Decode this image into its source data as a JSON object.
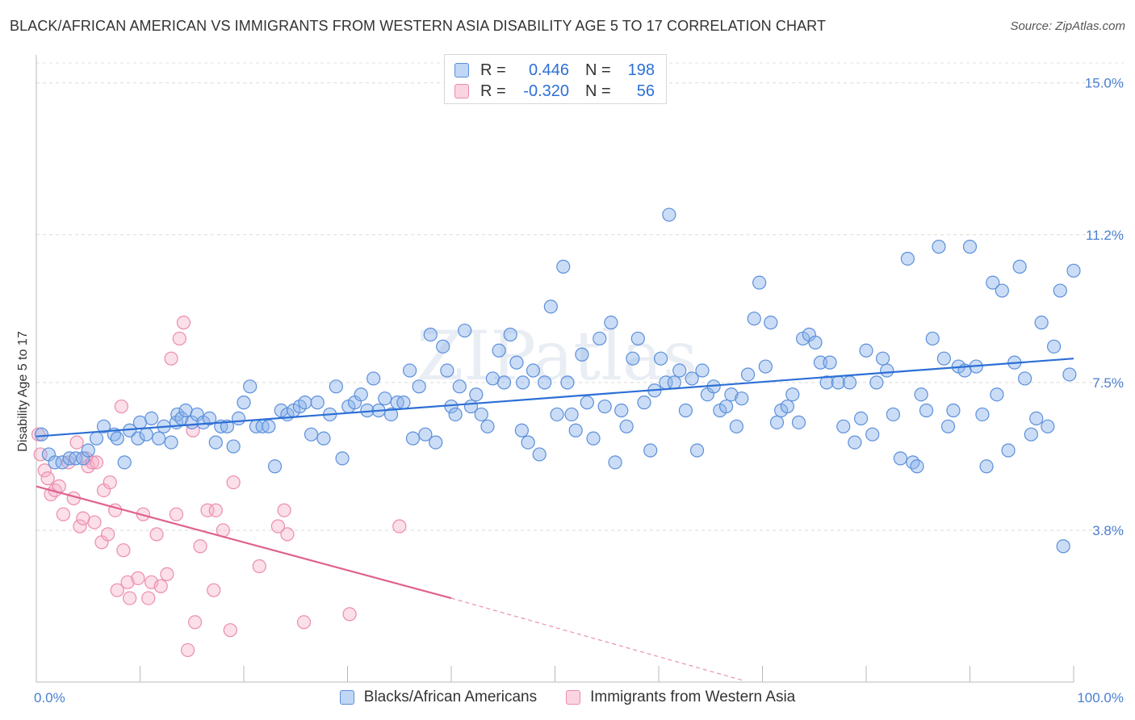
{
  "title": "BLACK/AFRICAN AMERICAN VS IMMIGRANTS FROM WESTERN ASIA DISABILITY AGE 5 TO 17 CORRELATION CHART",
  "source": "Source: ZipAtlas.com",
  "watermark": "ZIPatlas",
  "legend": {
    "blue": {
      "r_label": "R =",
      "r_value": "0.446",
      "n_label": "N =",
      "n_value": "198"
    },
    "pink": {
      "r_label": "R =",
      "r_value": "-0.320",
      "n_label": "N =",
      "n_value": "56"
    }
  },
  "colors": {
    "blue": "#5b8fdb",
    "blue_line": "#2d6fd6",
    "pink": "#ec8cad",
    "pink_line": "#e0608f",
    "tick_text": "#4a7fd0"
  },
  "chart_data": {
    "type": "scatter",
    "title": "BLACK/AFRICAN AMERICAN VS IMMIGRANTS FROM WESTERN ASIA DISABILITY AGE 5 TO 17 CORRELATION CHART",
    "xlabel": "",
    "ylabel": "Disability Age 5 to 17",
    "xlim": [
      0,
      100
    ],
    "ylim": [
      0,
      15.5
    ],
    "x_tick_labels": [
      "0.0%",
      "100.0%"
    ],
    "y_ticks": [
      3.8,
      7.5,
      11.2,
      15.0
    ],
    "y_tick_labels": [
      "3.8%",
      "7.5%",
      "11.2%",
      "15.0%"
    ],
    "grid": "horizontal dashed",
    "legend_position": "top-center",
    "series": [
      {
        "name": "Blacks/African Americans",
        "color": "#5b8fdb",
        "R": 0.446,
        "N": 198,
        "trend": {
          "x": [
            0,
            100
          ],
          "y": [
            6.15,
            8.1
          ]
        },
        "points": [
          [
            0.5,
            6.2
          ],
          [
            1.2,
            5.7
          ],
          [
            1.8,
            5.5
          ],
          [
            2.5,
            5.5
          ],
          [
            3.2,
            5.6
          ],
          [
            3.8,
            5.6
          ],
          [
            4.5,
            5.6
          ],
          [
            5,
            5.8
          ],
          [
            5.8,
            6.1
          ],
          [
            6.5,
            6.4
          ],
          [
            7.5,
            6.2
          ],
          [
            7.8,
            6.1
          ],
          [
            8.5,
            5.5
          ],
          [
            9,
            6.3
          ],
          [
            9.8,
            6.1
          ],
          [
            10,
            6.5
          ],
          [
            10.6,
            6.2
          ],
          [
            11.1,
            6.6
          ],
          [
            11.8,
            6.1
          ],
          [
            12.3,
            6.4
          ],
          [
            13,
            6
          ],
          [
            13.5,
            6.5
          ],
          [
            13.6,
            6.7
          ],
          [
            14,
            6.6
          ],
          [
            14.4,
            6.8
          ],
          [
            15,
            6.5
          ],
          [
            15.5,
            6.7
          ],
          [
            16.1,
            6.5
          ],
          [
            16.7,
            6.6
          ],
          [
            17.3,
            6
          ],
          [
            17.8,
            6.4
          ],
          [
            18.4,
            6.4
          ],
          [
            19,
            5.9
          ],
          [
            19.5,
            6.6
          ],
          [
            20,
            7
          ],
          [
            20.6,
            7.4
          ],
          [
            21.2,
            6.4
          ],
          [
            21.8,
            6.4
          ],
          [
            22.4,
            6.4
          ],
          [
            23,
            5.4
          ],
          [
            23.6,
            6.8
          ],
          [
            24.2,
            6.7
          ],
          [
            24.8,
            6.8
          ],
          [
            25.4,
            6.9
          ],
          [
            25.9,
            7
          ],
          [
            26.5,
            6.2
          ],
          [
            27.1,
            7
          ],
          [
            27.7,
            6.1
          ],
          [
            28.3,
            6.7
          ],
          [
            28.9,
            7.4
          ],
          [
            29.5,
            5.6
          ],
          [
            30.1,
            6.9
          ],
          [
            30.7,
            7
          ],
          [
            31.3,
            7.2
          ],
          [
            31.9,
            6.8
          ],
          [
            32.5,
            7.6
          ],
          [
            33,
            6.8
          ],
          [
            33.6,
            7.1
          ],
          [
            34.2,
            6.7
          ],
          [
            34.8,
            7
          ],
          [
            35.4,
            7
          ],
          [
            36,
            7.8
          ],
          [
            36.3,
            6.1
          ],
          [
            36.9,
            7.4
          ],
          [
            37.5,
            6.2
          ],
          [
            38,
            8.7
          ],
          [
            38.5,
            6
          ],
          [
            39.2,
            8.4
          ],
          [
            39.6,
            7.8
          ],
          [
            40,
            6.9
          ],
          [
            40.4,
            6.7
          ],
          [
            40.8,
            7.4
          ],
          [
            41.3,
            8.8
          ],
          [
            41.9,
            6.9
          ],
          [
            42.4,
            7.2
          ],
          [
            42.9,
            6.7
          ],
          [
            43.5,
            6.4
          ],
          [
            44,
            7.6
          ],
          [
            44.6,
            8.3
          ],
          [
            45.1,
            7.5
          ],
          [
            45.7,
            8.7
          ],
          [
            46.3,
            8
          ],
          [
            46.9,
            7.5
          ],
          [
            46.8,
            6.3
          ],
          [
            47.4,
            6
          ],
          [
            47.9,
            7.8
          ],
          [
            48.5,
            5.7
          ],
          [
            49,
            7.5
          ],
          [
            49.6,
            9.4
          ],
          [
            50.2,
            6.7
          ],
          [
            50.8,
            10.4
          ],
          [
            51.2,
            7.5
          ],
          [
            51.6,
            6.7
          ],
          [
            52,
            6.3
          ],
          [
            52.6,
            8.2
          ],
          [
            53.1,
            7
          ],
          [
            53.7,
            6.1
          ],
          [
            54.3,
            8.6
          ],
          [
            54.8,
            6.9
          ],
          [
            55.4,
            9
          ],
          [
            55.8,
            5.5
          ],
          [
            56.4,
            6.8
          ],
          [
            56.9,
            6.4
          ],
          [
            57.5,
            8.1
          ],
          [
            58,
            8.6
          ],
          [
            58.6,
            7
          ],
          [
            59.2,
            5.8
          ],
          [
            59.6,
            7.3
          ],
          [
            60.2,
            8.1
          ],
          [
            60.7,
            7.5
          ],
          [
            61,
            11.7
          ],
          [
            61.5,
            7.5
          ],
          [
            62,
            7.8
          ],
          [
            62.6,
            6.8
          ],
          [
            63.2,
            7.6
          ],
          [
            63.7,
            5.8
          ],
          [
            64.2,
            7.8
          ],
          [
            64.7,
            7.2
          ],
          [
            65.3,
            7.4
          ],
          [
            65.9,
            6.8
          ],
          [
            66.5,
            6.9
          ],
          [
            67,
            7.2
          ],
          [
            67.5,
            6.4
          ],
          [
            68,
            7.1
          ],
          [
            68.6,
            7.7
          ],
          [
            69.2,
            9.1
          ],
          [
            69.7,
            10
          ],
          [
            70.3,
            7.9
          ],
          [
            70.8,
            9
          ],
          [
            71.4,
            6.5
          ],
          [
            71.8,
            6.8
          ],
          [
            72.4,
            6.9
          ],
          [
            72.9,
            7.2
          ],
          [
            73.5,
            6.5
          ],
          [
            73.9,
            8.6
          ],
          [
            74.5,
            8.7
          ],
          [
            75.1,
            8.5
          ],
          [
            75.6,
            8
          ],
          [
            76.2,
            7.5
          ],
          [
            76.5,
            8
          ],
          [
            77.3,
            7.5
          ],
          [
            77.8,
            6.4
          ],
          [
            78.4,
            7.5
          ],
          [
            78.9,
            6
          ],
          [
            79.5,
            6.6
          ],
          [
            80,
            8.3
          ],
          [
            80.6,
            6.2
          ],
          [
            81,
            7.5
          ],
          [
            81.6,
            8.1
          ],
          [
            82,
            7.8
          ],
          [
            82.6,
            6.7
          ],
          [
            83.3,
            5.6
          ],
          [
            84,
            10.6
          ],
          [
            84.5,
            5.5
          ],
          [
            84.9,
            5.4
          ],
          [
            85.3,
            7.2
          ],
          [
            85.8,
            6.8
          ],
          [
            86.4,
            8.6
          ],
          [
            87,
            10.9
          ],
          [
            87.5,
            8.1
          ],
          [
            87.9,
            6.4
          ],
          [
            88.4,
            6.8
          ],
          [
            88.9,
            7.9
          ],
          [
            89.5,
            7.8
          ],
          [
            90,
            10.9
          ],
          [
            90.6,
            7.9
          ],
          [
            91.2,
            6.7
          ],
          [
            91.6,
            5.4
          ],
          [
            92.2,
            10
          ],
          [
            92.6,
            7.2
          ],
          [
            93.1,
            9.8
          ],
          [
            93.7,
            5.8
          ],
          [
            94.3,
            8
          ],
          [
            94.8,
            10.4
          ],
          [
            95.3,
            7.6
          ],
          [
            95.9,
            6.2
          ],
          [
            96.4,
            6.6
          ],
          [
            96.9,
            9
          ],
          [
            97.5,
            6.4
          ],
          [
            98.1,
            8.4
          ],
          [
            98.7,
            9.8
          ],
          [
            99,
            3.4
          ],
          [
            99.6,
            7.7
          ],
          [
            100,
            10.3
          ]
        ]
      },
      {
        "name": "Immigrants from Western Asia",
        "color": "#ec8cad",
        "R": -0.32,
        "N": 56,
        "trend": {
          "x": [
            0,
            40
          ],
          "y": [
            4.9,
            2.1
          ],
          "dashed_to": {
            "x": 68,
            "y": 0.05
          }
        },
        "points": [
          [
            0.2,
            6.2
          ],
          [
            0.4,
            5.7
          ],
          [
            0.8,
            5.3
          ],
          [
            1.1,
            5.1
          ],
          [
            1.4,
            4.7
          ],
          [
            1.8,
            4.8
          ],
          [
            2.2,
            4.9
          ],
          [
            2.6,
            4.2
          ],
          [
            3.1,
            5.5
          ],
          [
            3.6,
            4.6
          ],
          [
            3.9,
            6
          ],
          [
            4.2,
            3.9
          ],
          [
            4.5,
            4.1
          ],
          [
            4.8,
            5.6
          ],
          [
            5,
            5.4
          ],
          [
            5.4,
            5.5
          ],
          [
            5.6,
            4
          ],
          [
            5.8,
            5.5
          ],
          [
            6.3,
            3.5
          ],
          [
            6.5,
            4.8
          ],
          [
            6.9,
            3.7
          ],
          [
            7.1,
            5
          ],
          [
            7.6,
            4.3
          ],
          [
            7.8,
            2.3
          ],
          [
            8.2,
            6.9
          ],
          [
            8.4,
            3.3
          ],
          [
            8.8,
            2.5
          ],
          [
            9,
            2.1
          ],
          [
            9.8,
            2.6
          ],
          [
            10.3,
            4.2
          ],
          [
            10.8,
            2.1
          ],
          [
            11.1,
            2.5
          ],
          [
            11.6,
            3.7
          ],
          [
            12,
            2.4
          ],
          [
            12.6,
            2.7
          ],
          [
            13,
            8.1
          ],
          [
            13.5,
            4.2
          ],
          [
            13.8,
            8.6
          ],
          [
            14.2,
            9
          ],
          [
            14.6,
            0.8
          ],
          [
            15.1,
            6.3
          ],
          [
            15.3,
            1.5
          ],
          [
            15.8,
            3.4
          ],
          [
            16.5,
            4.3
          ],
          [
            17.1,
            2.3
          ],
          [
            17.3,
            4.3
          ],
          [
            18,
            3.8
          ],
          [
            18.7,
            1.3
          ],
          [
            19,
            5
          ],
          [
            21.5,
            2.9
          ],
          [
            23.3,
            3.9
          ],
          [
            23.9,
            4.3
          ],
          [
            24.2,
            3.7
          ],
          [
            25.8,
            1.5
          ],
          [
            30.2,
            1.7
          ],
          [
            35,
            3.9
          ]
        ]
      }
    ]
  },
  "bottom_legend": [
    "Blacks/African Americans",
    "Immigrants from Western Asia"
  ]
}
